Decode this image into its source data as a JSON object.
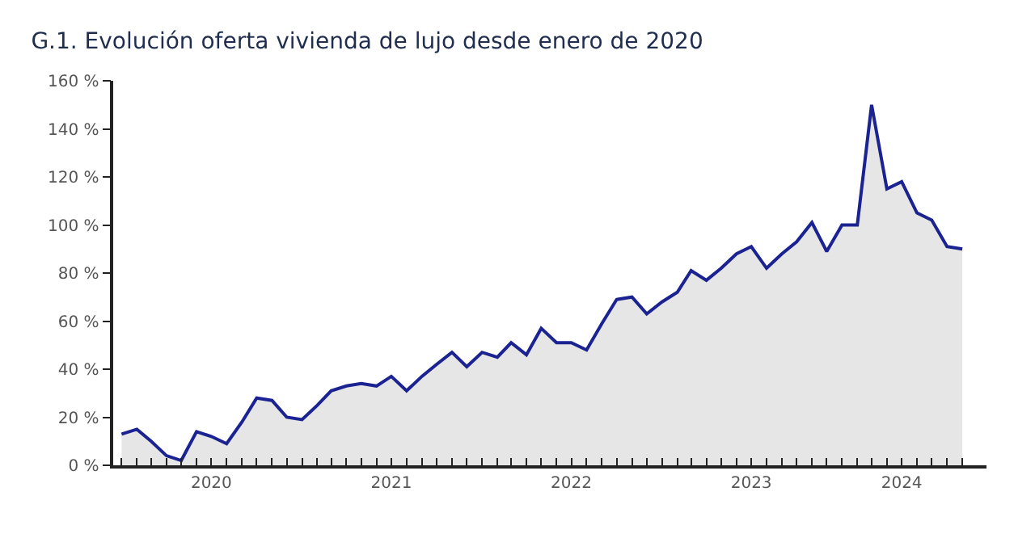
{
  "chart_data": {
    "type": "area",
    "title": "G.1. Evolución oferta vivienda de lujo desde enero de 2020",
    "x": [
      "2020-01",
      "2020-02",
      "2020-03",
      "2020-04",
      "2020-05",
      "2020-06",
      "2020-07",
      "2020-08",
      "2020-09",
      "2020-10",
      "2020-11",
      "2020-12",
      "2021-01",
      "2021-02",
      "2021-03",
      "2021-04",
      "2021-05",
      "2021-06",
      "2021-07",
      "2021-08",
      "2021-09",
      "2021-10",
      "2021-11",
      "2021-12",
      "2022-01",
      "2022-02",
      "2022-03",
      "2022-04",
      "2022-05",
      "2022-06",
      "2022-07",
      "2022-08",
      "2022-09",
      "2022-10",
      "2022-11",
      "2022-12",
      "2023-01",
      "2023-02",
      "2023-03",
      "2023-04",
      "2023-05",
      "2023-06",
      "2023-07",
      "2023-08",
      "2023-09",
      "2023-10",
      "2023-11",
      "2023-12",
      "2024-01",
      "2024-02",
      "2024-03",
      "2024-04",
      "2024-05",
      "2024-06",
      "2024-07",
      "2024-08",
      "2024-09"
    ],
    "series": [
      {
        "color": "#1a2391",
        "values": [
          13,
          15,
          10,
          4,
          2,
          14,
          12,
          9,
          18,
          28,
          27,
          20,
          19,
          25,
          31,
          33,
          34,
          33,
          37,
          31,
          37,
          42,
          47,
          41,
          47,
          45,
          51,
          46,
          57,
          51,
          51,
          48,
          59,
          69,
          70,
          63,
          68,
          72,
          81,
          77,
          82,
          88,
          91,
          82,
          88,
          93,
          101,
          89,
          100,
          100,
          150,
          115,
          118,
          105,
          102,
          91,
          90
        ]
      }
    ],
    "xlim": [
      "2019-12-15",
      "2024-10-20"
    ],
    "xticks": [
      {
        "value": "2020-01",
        "label": null
      },
      {
        "value": "2020-02",
        "label": null
      },
      {
        "value": "2020-03",
        "label": null
      },
      {
        "value": "2020-04",
        "label": null
      },
      {
        "value": "2020-05",
        "label": null
      },
      {
        "value": "2020-06",
        "label": null
      },
      {
        "value": "2020-07",
        "label": "2020"
      },
      {
        "value": "2020-08",
        "label": null
      },
      {
        "value": "2020-09",
        "label": null
      },
      {
        "value": "2020-10",
        "label": null
      },
      {
        "value": "2020-11",
        "label": null
      },
      {
        "value": "2020-12",
        "label": null
      },
      {
        "value": "2021-01",
        "label": null
      },
      {
        "value": "2021-02",
        "label": null
      },
      {
        "value": "2021-03",
        "label": null
      },
      {
        "value": "2021-04",
        "label": null
      },
      {
        "value": "2021-05",
        "label": null
      },
      {
        "value": "2021-06",
        "label": null
      },
      {
        "value": "2021-07",
        "label": "2021"
      },
      {
        "value": "2021-08",
        "label": null
      },
      {
        "value": "2021-09",
        "label": null
      },
      {
        "value": "2021-10",
        "label": null
      },
      {
        "value": "2021-11",
        "label": null
      },
      {
        "value": "2021-12",
        "label": null
      },
      {
        "value": "2022-01",
        "label": null
      },
      {
        "value": "2022-02",
        "label": null
      },
      {
        "value": "2022-03",
        "label": null
      },
      {
        "value": "2022-04",
        "label": null
      },
      {
        "value": "2022-05",
        "label": null
      },
      {
        "value": "2022-06",
        "label": null
      },
      {
        "value": "2022-07",
        "label": "2022"
      },
      {
        "value": "2022-08",
        "label": null
      },
      {
        "value": "2022-09",
        "label": null
      },
      {
        "value": "2022-10",
        "label": null
      },
      {
        "value": "2022-11",
        "label": null
      },
      {
        "value": "2022-12",
        "label": null
      },
      {
        "value": "2023-01",
        "label": null
      },
      {
        "value": "2023-02",
        "label": null
      },
      {
        "value": "2023-03",
        "label": null
      },
      {
        "value": "2023-04",
        "label": null
      },
      {
        "value": "2023-05",
        "label": null
      },
      {
        "value": "2023-06",
        "label": null
      },
      {
        "value": "2023-07",
        "label": "2023"
      },
      {
        "value": "2023-08",
        "label": null
      },
      {
        "value": "2023-09",
        "label": null
      },
      {
        "value": "2023-10",
        "label": null
      },
      {
        "value": "2023-11",
        "label": null
      },
      {
        "value": "2023-12",
        "label": null
      },
      {
        "value": "2024-01",
        "label": null
      },
      {
        "value": "2024-02",
        "label": null
      },
      {
        "value": "2024-03",
        "label": null
      },
      {
        "value": "2024-04",
        "label": null
      },
      {
        "value": "2024-05",
        "label": "2024"
      },
      {
        "value": "2024-06",
        "label": null
      },
      {
        "value": "2024-07",
        "label": null
      },
      {
        "value": "2024-08",
        "label": null
      },
      {
        "value": "2024-09",
        "label": null
      }
    ],
    "ylim": [
      0,
      160
    ],
    "yticks": [
      {
        "value": 0,
        "label": "0 %"
      },
      {
        "value": 20,
        "label": "20 %"
      },
      {
        "value": 40,
        "label": "40 %"
      },
      {
        "value": 60,
        "label": "60 %"
      },
      {
        "value": 80,
        "label": "80 %"
      },
      {
        "value": 100,
        "label": "100 %"
      },
      {
        "value": 120,
        "label": "120 %"
      },
      {
        "value": 140,
        "label": "140 %"
      },
      {
        "value": 160,
        "label": "160 %"
      }
    ],
    "marker": "none",
    "line_style": "solid"
  }
}
